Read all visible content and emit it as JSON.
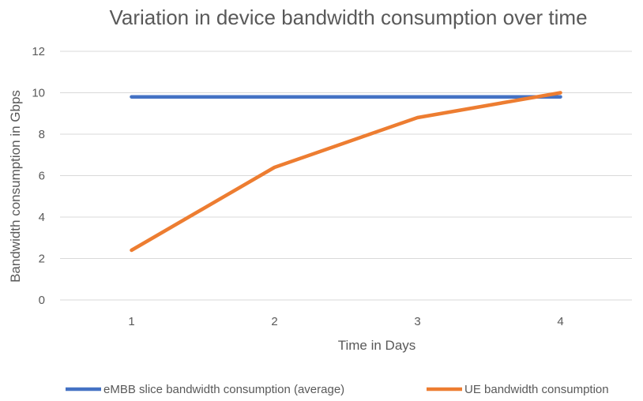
{
  "chart_data": {
    "type": "line",
    "title": "Variation in device bandwidth consumption over time",
    "xlabel": "Time in Days",
    "ylabel": "Bandwidth consumption in Gbps",
    "categories": [
      "1",
      "2",
      "3",
      "4"
    ],
    "ylim": [
      0,
      12
    ],
    "yticks": [
      "0",
      "2",
      "4",
      "6",
      "8",
      "10",
      "12"
    ],
    "grid": true,
    "legend_position": "bottom",
    "series": [
      {
        "name": "eMBB slice bandwidth consumption (average)",
        "values": [
          9.8,
          9.8,
          9.8,
          9.8
        ],
        "color": "#4472c4"
      },
      {
        "name": "UE bandwidth consumption",
        "values": [
          2.4,
          6.4,
          8.8,
          10.0
        ],
        "color": "#ed7d31"
      }
    ]
  }
}
